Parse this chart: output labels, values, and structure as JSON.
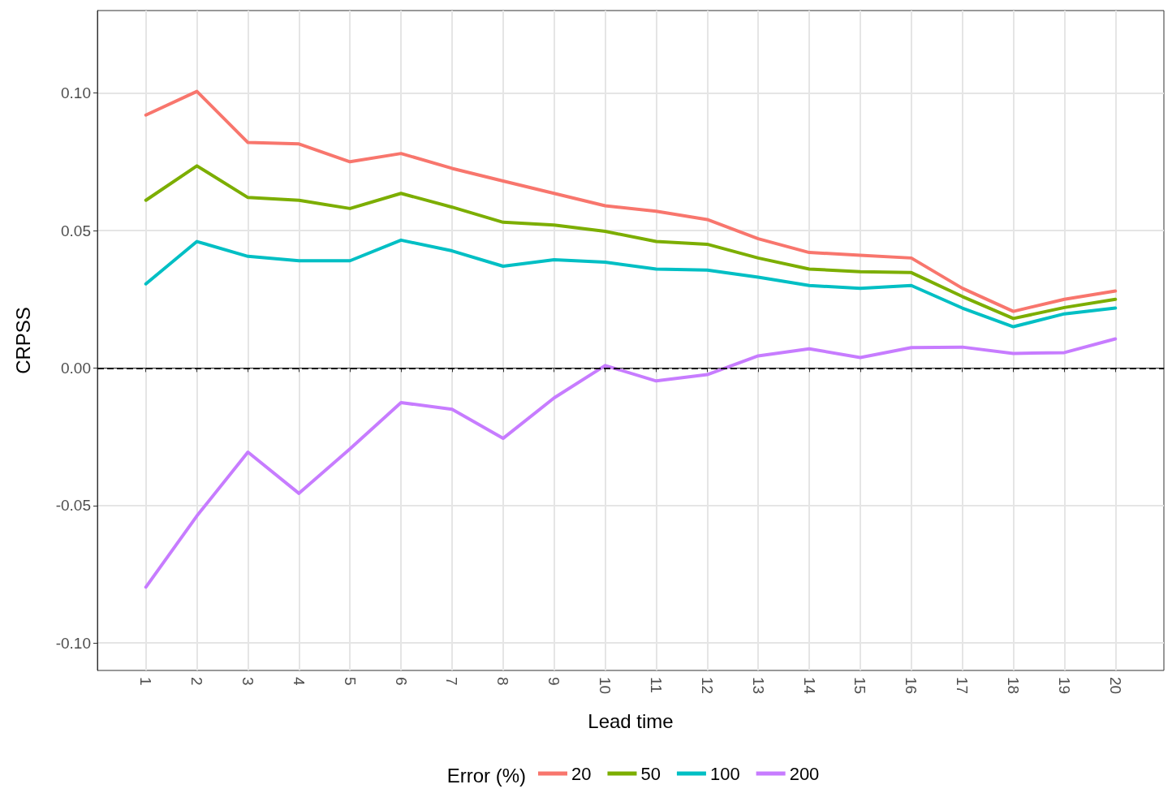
{
  "chart_data": {
    "type": "line",
    "xlabel": "Lead time",
    "ylabel": "CRPSS",
    "legend_title": "Error (%)",
    "x": [
      1,
      2,
      3,
      4,
      5,
      6,
      7,
      8,
      9,
      10,
      11,
      12,
      13,
      14,
      15,
      16,
      17,
      18,
      19,
      20
    ],
    "series": [
      {
        "name": "20",
        "color": "#f8766d",
        "values": [
          0.092,
          0.1006,
          0.082,
          0.0815,
          0.075,
          0.078,
          0.0726,
          0.068,
          0.0635,
          0.059,
          0.057,
          0.054,
          0.047,
          0.042,
          0.041,
          0.04,
          0.029,
          0.0206,
          0.025,
          0.028
        ]
      },
      {
        "name": "50",
        "color": "#7cae00",
        "values": [
          0.061,
          0.0735,
          0.062,
          0.061,
          0.058,
          0.0635,
          0.0585,
          0.053,
          0.052,
          0.0497,
          0.046,
          0.045,
          0.04,
          0.036,
          0.035,
          0.0347,
          0.026,
          0.018,
          0.022,
          0.025
        ]
      },
      {
        "name": "100",
        "color": "#00bfc4",
        "values": [
          0.0306,
          0.046,
          0.0406,
          0.039,
          0.039,
          0.0465,
          0.0426,
          0.037,
          0.0394,
          0.0385,
          0.036,
          0.0356,
          0.033,
          0.03,
          0.029,
          0.03,
          0.0218,
          0.015,
          0.0197,
          0.0218
        ]
      },
      {
        "name": "200",
        "color": "#c77cff",
        "values": [
          -0.0797,
          -0.0538,
          -0.0306,
          -0.0456,
          -0.0294,
          -0.0126,
          -0.015,
          -0.0256,
          -0.0109,
          0.0009,
          -0.0047,
          -0.0024,
          0.0044,
          0.007,
          0.0038,
          0.0074,
          0.0076,
          0.0053,
          0.0056,
          0.0106
        ]
      }
    ],
    "xlim": [
      0.05,
      20.95
    ],
    "xticks": [
      1,
      2,
      3,
      4,
      5,
      6,
      7,
      8,
      9,
      10,
      11,
      12,
      13,
      14,
      15,
      16,
      17,
      18,
      19,
      20
    ],
    "ylim": [
      -0.11,
      0.13
    ],
    "yticks": [
      {
        "value": -0.1,
        "label": "-0.10"
      },
      {
        "value": -0.05,
        "label": "-0.05"
      },
      {
        "value": 0,
        "label": "0.00"
      },
      {
        "value": 0.05,
        "label": "0.05"
      },
      {
        "value": 0.1,
        "label": "0.10"
      }
    ],
    "ref_lines": [
      {
        "axis": "y",
        "value": 0,
        "color": "#000000",
        "line_style": "dashed"
      }
    ],
    "grid": true,
    "legend": "bottom",
    "marker": "none",
    "line_style": "solid"
  }
}
